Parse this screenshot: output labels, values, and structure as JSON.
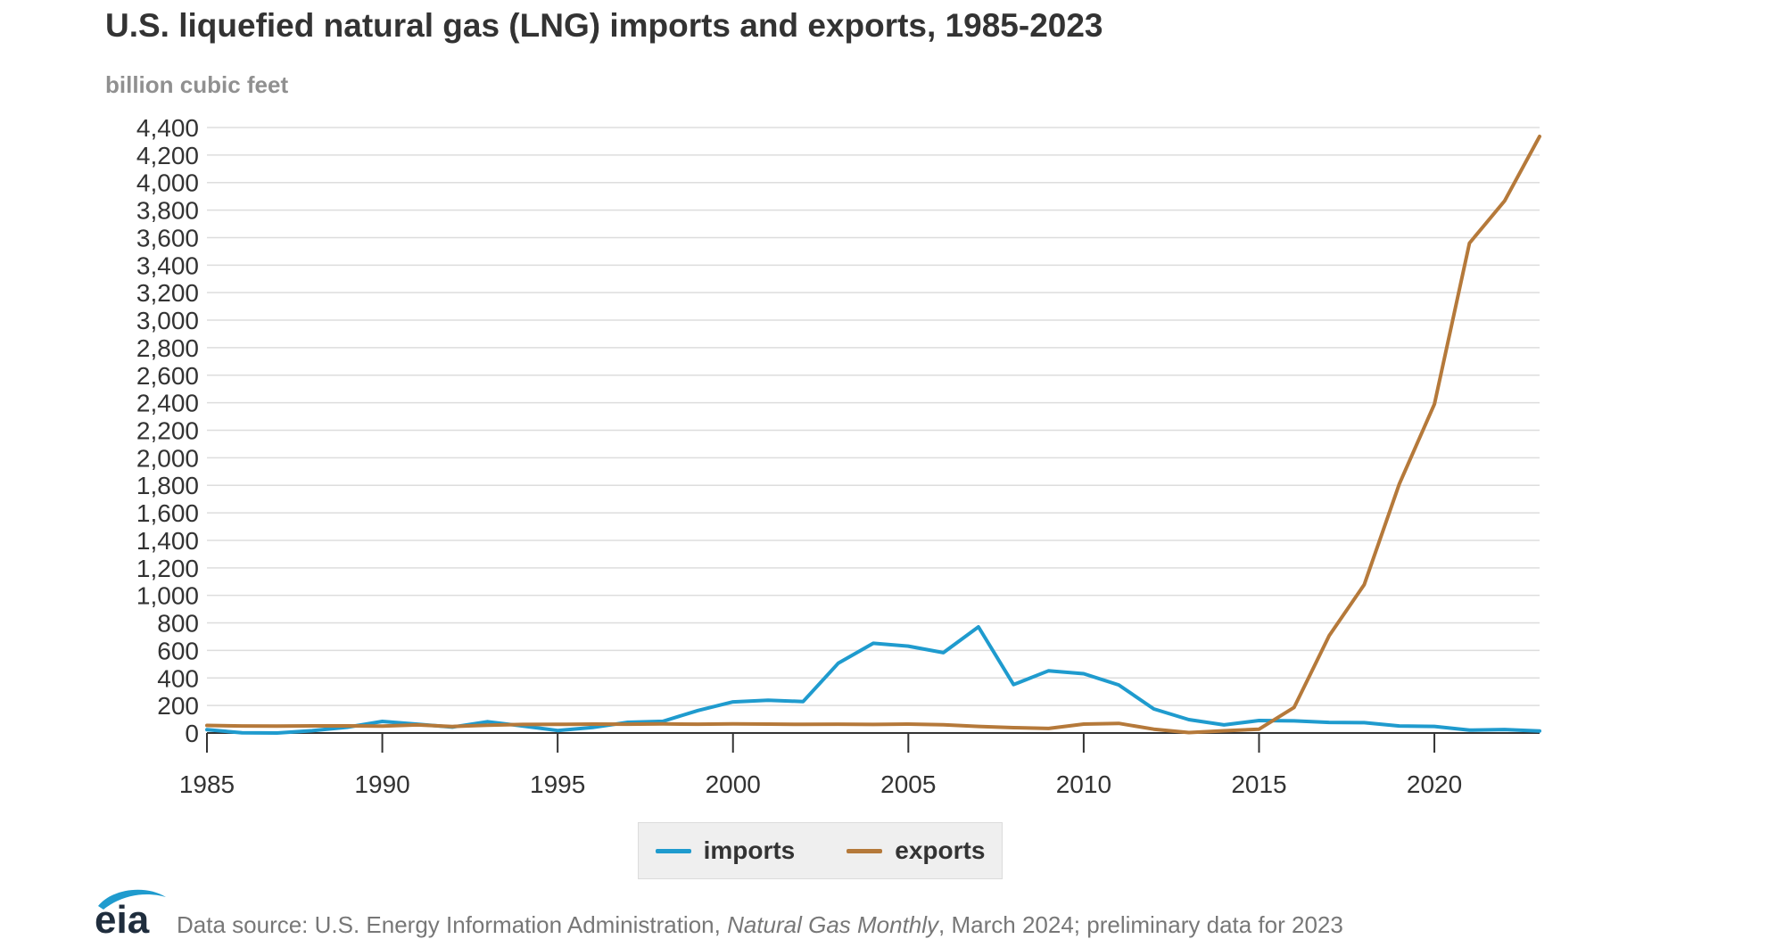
{
  "title": "U.S. liquefied natural gas (LNG) imports and exports, 1985-2023",
  "unit_label": "billion cubic feet",
  "legend": {
    "imports_label": "imports",
    "exports_label": "exports"
  },
  "source": {
    "prefix": "Data source: U.S. Energy Information Administration, ",
    "publication": "Natural Gas Monthly",
    "suffix": ", March 2024; preliminary data for 2023"
  },
  "logo_text": "eia",
  "colors": {
    "imports": "#1f9bce",
    "exports": "#b5793a",
    "grid": "#dddddd",
    "axis": "#333333",
    "text": "#333333"
  },
  "chart_data": {
    "type": "line",
    "title": "U.S. liquefied natural gas (LNG) imports and exports, 1985-2023",
    "ylabel": "billion cubic feet",
    "xlim": [
      1985,
      2023
    ],
    "ylim": [
      0,
      4400
    ],
    "y_ticks": [
      0,
      200,
      400,
      600,
      800,
      1000,
      1200,
      1400,
      1600,
      1800,
      2000,
      2200,
      2400,
      2600,
      2800,
      3000,
      3200,
      3400,
      3600,
      3800,
      4000,
      4200,
      4400
    ],
    "x_ticks": [
      1985,
      1990,
      1995,
      2000,
      2005,
      2010,
      2015,
      2020
    ],
    "grid": true,
    "legend_position": "bottom",
    "x": [
      1985,
      1986,
      1987,
      1988,
      1989,
      1990,
      1991,
      1992,
      1993,
      1994,
      1995,
      1996,
      1997,
      1998,
      1999,
      2000,
      2001,
      2002,
      2003,
      2004,
      2005,
      2006,
      2007,
      2008,
      2009,
      2010,
      2011,
      2012,
      2013,
      2014,
      2015,
      2016,
      2017,
      2018,
      2019,
      2020,
      2021,
      2022,
      2023
    ],
    "series": [
      {
        "name": "imports",
        "values": [
          24,
          2,
          0,
          17,
          42,
          84,
          64,
          43,
          82,
          51,
          18,
          40,
          78,
          85,
          163,
          226,
          238,
          229,
          507,
          652,
          631,
          584,
          771,
          352,
          452,
          431,
          349,
          175,
          97,
          59,
          91,
          88,
          77,
          75,
          51,
          48,
          21,
          25,
          14
        ]
      },
      {
        "name": "exports",
        "values": [
          55,
          51,
          50,
          52,
          52,
          50,
          59,
          47,
          57,
          62,
          63,
          65,
          64,
          66,
          64,
          66,
          65,
          63,
          64,
          62,
          65,
          60,
          48,
          39,
          33,
          65,
          70,
          28,
          3,
          16,
          28,
          186,
          707,
          1078,
          1809,
          2390,
          3560,
          3866,
          4335
        ]
      }
    ]
  }
}
